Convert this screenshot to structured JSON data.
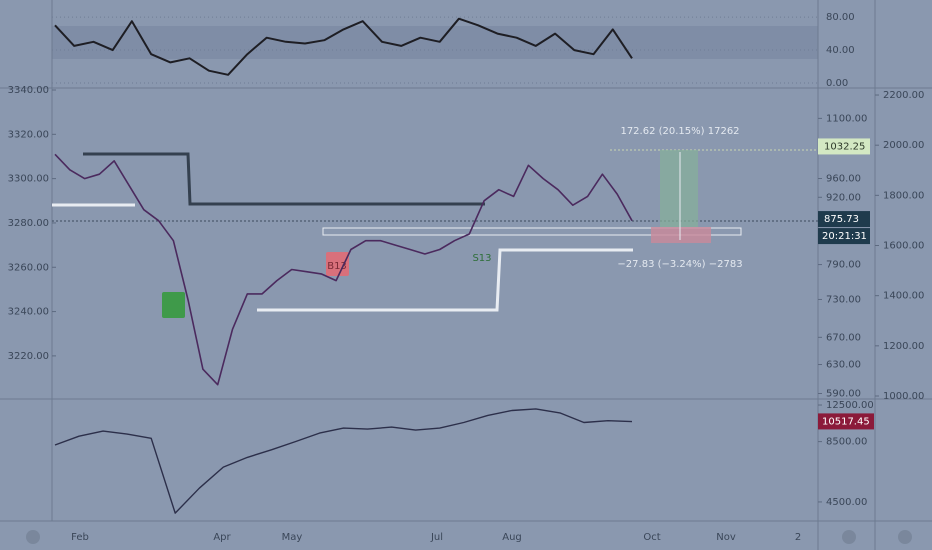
{
  "rsi": {
    "ylim": [
      -6,
      91
    ],
    "yticks": [
      {
        "value": 0,
        "label": "0.00"
      },
      {
        "value": 40,
        "label": "40.00"
      },
      {
        "value": 80,
        "label": "80.00"
      }
    ],
    "values": [
      70,
      45,
      50,
      40,
      75,
      35,
      25,
      30,
      15,
      10,
      35,
      55,
      50,
      48,
      52,
      65,
      75,
      50,
      45,
      55,
      50,
      78,
      70,
      60,
      55,
      45,
      60,
      40,
      35,
      65,
      30
    ]
  },
  "price": {
    "ylim": [
      3201,
      3340
    ],
    "yticks": [
      {
        "value": 3220,
        "label": "3220.00"
      },
      {
        "value": 3240,
        "label": "3240.00"
      },
      {
        "value": 3260,
        "label": "3260.00"
      },
      {
        "value": 3280,
        "label": "3280.00"
      },
      {
        "value": 3300,
        "label": "3300.00"
      },
      {
        "value": 3320,
        "label": "3320.00"
      },
      {
        "value": 3340,
        "label": "3340.00"
      }
    ],
    "values": [
      3311,
      3304,
      3300,
      3302,
      3308,
      3297,
      3286,
      3281,
      3272,
      3245,
      3214,
      3207,
      3232,
      3248,
      3248,
      3254,
      3259,
      3258,
      3257,
      3254,
      3268,
      3272,
      3272,
      3270,
      3268,
      3266,
      3268,
      3272,
      3275,
      3290,
      3295,
      3292,
      3306,
      3300,
      3295,
      3288,
      3292,
      3302,
      3293,
      3281
    ]
  },
  "inner_axis": {
    "ylim": [
      584,
      1173
    ],
    "log": true,
    "yticks": [
      {
        "value": 590,
        "label": "590.00"
      },
      {
        "value": 630,
        "label": "630.00"
      },
      {
        "value": 670,
        "label": "670.00"
      },
      {
        "value": 730,
        "label": "730.00"
      },
      {
        "value": 790,
        "label": "790.00"
      },
      {
        "value": 920,
        "label": "920.00"
      },
      {
        "value": 960,
        "label": "960.00"
      },
      {
        "value": 1100,
        "label": "1100.00"
      }
    ],
    "markers": [
      {
        "value": 1032.25,
        "label": "1032.25"
      },
      {
        "value": 875.73,
        "label": "875.73"
      }
    ],
    "countdown": "20:21:31"
  },
  "outer_axis": {
    "ylim": [
      992,
      2220
    ],
    "yticks": [
      {
        "value": 1000,
        "label": "1000.00"
      },
      {
        "value": 1200,
        "label": "1200.00"
      },
      {
        "value": 1400,
        "label": "1400.00"
      },
      {
        "value": 1600,
        "label": "1600.00"
      },
      {
        "value": 1800,
        "label": "1800.00"
      },
      {
        "value": 2000,
        "label": "2000.00"
      },
      {
        "value": 2200,
        "label": "2200.00"
      }
    ]
  },
  "lower": {
    "ylim": [
      3720,
      13180
    ],
    "log": true,
    "yticks": [
      {
        "value": 4500,
        "label": "4500.00"
      },
      {
        "value": 8500,
        "label": "8500.00"
      },
      {
        "value": 12500,
        "label": "12500.00"
      }
    ],
    "values": [
      8200,
      9000,
      9500,
      9200,
      8800,
      4000,
      5200,
      6500,
      7200,
      7800,
      8500,
      9300,
      9800,
      9700,
      9900,
      9600,
      9800,
      10400,
      11200,
      11800,
      12000,
      11500,
      10400,
      10600,
      10500
    ],
    "last": {
      "value": 10517.45,
      "label": "10517.45"
    }
  },
  "xlabels": [
    "Feb",
    "Apr",
    "May",
    "Jul",
    "Aug",
    "Oct",
    "Nov",
    "2"
  ],
  "annotations": {
    "long": "172.62 (20.15%) 17262",
    "short": "−27.83 (−3.24%) −2783",
    "sell": "S13",
    "buy": "B13"
  }
}
